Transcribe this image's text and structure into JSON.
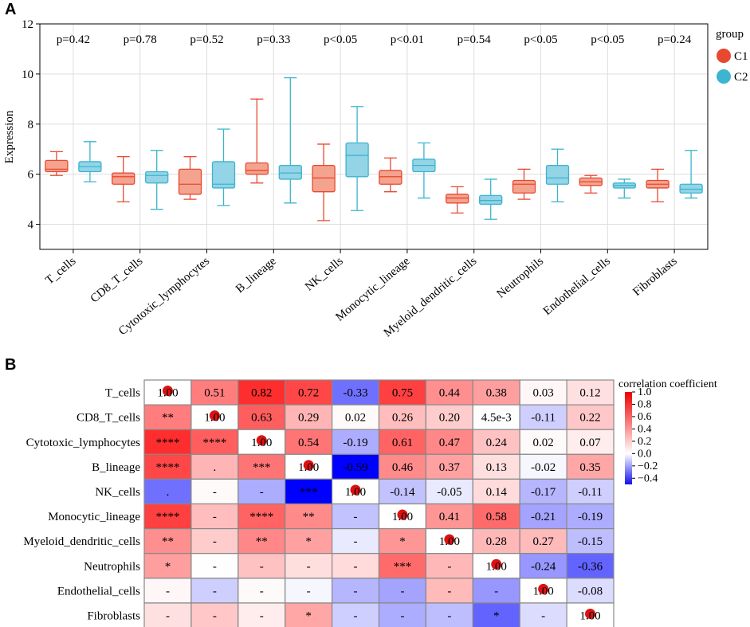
{
  "panelA": {
    "label": "A",
    "ylabel": "Expression",
    "legend_title": "group",
    "colors": {
      "C1": "#e8482f",
      "C1_fill": "#f4a38f",
      "C2": "#3db4d0",
      "C2_fill": "#93d4e6",
      "grid": "#dddddd"
    }
  },
  "panelB": {
    "label": "B",
    "colorbar_title": "correlation coefficient",
    "colorbar_ticks": [
      "1.0",
      "0.8",
      "0.6",
      "0.4",
      "0.2",
      "0.0",
      "−0.2",
      "−0.4"
    ],
    "colorbar_values": [
      1.0,
      0.8,
      0.6,
      0.4,
      0.2,
      0.0,
      -0.2,
      -0.4
    ],
    "diag_marker_color": "#dd1111"
  },
  "chart_data": [
    {
      "type": "box",
      "title": "",
      "xlabel": "",
      "ylabel": "Expression",
      "ylim": [
        3,
        12
      ],
      "yticks": [
        4,
        6,
        8,
        10,
        12
      ],
      "grid": true,
      "legend": {
        "title": "group",
        "entries": [
          "C1",
          "C2"
        ],
        "position": "right"
      },
      "categories": [
        "T_cells",
        "CD8_T_cells",
        "Cytotoxic_lymphocytes",
        "B_lineage",
        "NK_cells",
        "Monocytic_lineage",
        "Myeloid_dendritic_cells",
        "Neutrophils",
        "Endothelial_cells",
        "Fibroblasts"
      ],
      "pvalues": [
        "p=0.42",
        "p=0.78",
        "p=0.52",
        "p=0.33",
        "p<0.05",
        "p<0.01",
        "p=0.54",
        "p<0.05",
        "p<0.05",
        "p=0.24"
      ],
      "series": [
        {
          "name": "C1",
          "boxes": [
            {
              "min": 5.95,
              "q1": 6.1,
              "median": 6.2,
              "q3": 6.55,
              "max": 6.9
            },
            {
              "min": 4.9,
              "q1": 5.6,
              "median": 5.9,
              "q3": 6.05,
              "max": 6.7
            },
            {
              "min": 5.0,
              "q1": 5.2,
              "median": 5.6,
              "q3": 6.2,
              "max": 6.7
            },
            {
              "min": 5.65,
              "q1": 6.0,
              "median": 6.15,
              "q3": 6.45,
              "max": 9.0
            },
            {
              "min": 4.15,
              "q1": 5.3,
              "median": 5.85,
              "q3": 6.35,
              "max": 7.2
            },
            {
              "min": 5.3,
              "q1": 5.6,
              "median": 5.9,
              "q3": 6.15,
              "max": 6.65
            },
            {
              "min": 4.45,
              "q1": 4.85,
              "median": 5.05,
              "q3": 5.2,
              "max": 5.5
            },
            {
              "min": 5.0,
              "q1": 5.25,
              "median": 5.6,
              "q3": 5.75,
              "max": 6.2
            },
            {
              "min": 5.25,
              "q1": 5.55,
              "median": 5.7,
              "q3": 5.85,
              "max": 5.95
            },
            {
              "min": 4.9,
              "q1": 5.45,
              "median": 5.6,
              "q3": 5.75,
              "max": 6.2
            }
          ]
        },
        {
          "name": "C2",
          "boxes": [
            {
              "min": 5.7,
              "q1": 6.1,
              "median": 6.3,
              "q3": 6.5,
              "max": 7.3
            },
            {
              "min": 4.6,
              "q1": 5.65,
              "median": 5.95,
              "q3": 6.1,
              "max": 6.95
            },
            {
              "min": 4.75,
              "q1": 5.45,
              "median": 5.6,
              "q3": 6.5,
              "max": 7.8
            },
            {
              "min": 4.85,
              "q1": 5.8,
              "median": 6.05,
              "q3": 6.35,
              "max": 9.85
            },
            {
              "min": 4.55,
              "q1": 5.9,
              "median": 6.75,
              "q3": 7.25,
              "max": 8.7
            },
            {
              "min": 5.05,
              "q1": 6.1,
              "median": 6.35,
              "q3": 6.6,
              "max": 7.25
            },
            {
              "min": 4.2,
              "q1": 4.8,
              "median": 4.95,
              "q3": 5.15,
              "max": 5.8
            },
            {
              "min": 4.9,
              "q1": 5.6,
              "median": 5.85,
              "q3": 6.35,
              "max": 7.0
            },
            {
              "min": 5.05,
              "q1": 5.45,
              "median": 5.55,
              "q3": 5.65,
              "max": 5.8
            },
            {
              "min": 5.05,
              "q1": 5.25,
              "median": 5.4,
              "q3": 5.6,
              "max": 6.95
            }
          ]
        }
      ]
    },
    {
      "type": "heatmap",
      "title": "",
      "colorbar_title": "correlation coefficient",
      "colorbar_range": [
        -0.5,
        1.0
      ],
      "rows": [
        "T_cells",
        "CD8_T_cells",
        "Cytotoxic_lymphocytes",
        "B_lineage",
        "NK_cells",
        "Monocytic_lineage",
        "Myeloid_dendritic_cells",
        "Neutrophils",
        "Endothelial_cells",
        "Fibroblasts"
      ],
      "values": [
        [
          1.0,
          0.51,
          0.82,
          0.72,
          -0.33,
          0.75,
          0.44,
          0.38,
          0.03,
          0.12
        ],
        [
          0.51,
          1.0,
          0.63,
          0.29,
          0.02,
          0.26,
          0.2,
          0.0045,
          -0.11,
          0.22
        ],
        [
          0.82,
          0.63,
          1.0,
          0.54,
          -0.19,
          0.61,
          0.47,
          0.24,
          0.02,
          0.07
        ],
        [
          0.72,
          0.29,
          0.54,
          1.0,
          -0.59,
          0.46,
          0.37,
          0.13,
          -0.02,
          0.35
        ],
        [
          -0.33,
          0.02,
          -0.19,
          -0.59,
          1.0,
          -0.14,
          -0.05,
          0.14,
          -0.17,
          -0.11
        ],
        [
          0.75,
          0.26,
          0.61,
          0.46,
          -0.14,
          1.0,
          0.41,
          0.58,
          -0.21,
          -0.19
        ],
        [
          0.44,
          0.2,
          0.47,
          0.37,
          -0.05,
          0.41,
          1.0,
          0.28,
          0.27,
          -0.15
        ],
        [
          0.38,
          0.0045,
          0.24,
          0.13,
          0.14,
          0.58,
          0.28,
          1.0,
          -0.24,
          -0.36
        ],
        [
          0.03,
          -0.11,
          0.02,
          -0.02,
          -0.17,
          -0.21,
          0.27,
          -0.24,
          1.0,
          -0.08
        ],
        [
          0.12,
          0.22,
          0.07,
          0.35,
          -0.11,
          -0.19,
          -0.15,
          -0.36,
          -0.08,
          1.0
        ]
      ],
      "labels": [
        [
          "1.00",
          "0.51",
          "0.82",
          "0.72",
          "-0.33",
          "0.75",
          "0.44",
          "0.38",
          "0.03",
          "0.12"
        ],
        [
          "**",
          "1.00",
          "0.63",
          "0.29",
          "0.02",
          "0.26",
          "0.20",
          "4.5e-3",
          "-0.11",
          "0.22"
        ],
        [
          "****",
          "****",
          "1.00",
          "0.54",
          "-0.19",
          "0.61",
          "0.47",
          "0.24",
          "0.02",
          "0.07"
        ],
        [
          "****",
          ".",
          "***",
          "1.00",
          "-0.59",
          "0.46",
          "0.37",
          "0.13",
          "-0.02",
          "0.35"
        ],
        [
          ".",
          "-",
          "-",
          "***",
          "1.00",
          "-0.14",
          "-0.05",
          "0.14",
          "-0.17",
          "-0.11"
        ],
        [
          "****",
          "-",
          "****",
          "**",
          "-",
          "1.00",
          "0.41",
          "0.58",
          "-0.21",
          "-0.19"
        ],
        [
          "**",
          "-",
          "**",
          "*",
          "-",
          "*",
          "1.00",
          "0.28",
          "0.27",
          "-0.15"
        ],
        [
          "*",
          "-",
          "-",
          "-",
          "-",
          "***",
          "-",
          "1.00",
          "-0.24",
          "-0.36"
        ],
        [
          "-",
          "-",
          "-",
          "-",
          "-",
          "-",
          "-",
          "-",
          "1.00",
          "-0.08"
        ],
        [
          "-",
          "-",
          "-",
          "*",
          "-",
          "-",
          "-",
          "*",
          "-",
          "1.00"
        ]
      ]
    }
  ]
}
